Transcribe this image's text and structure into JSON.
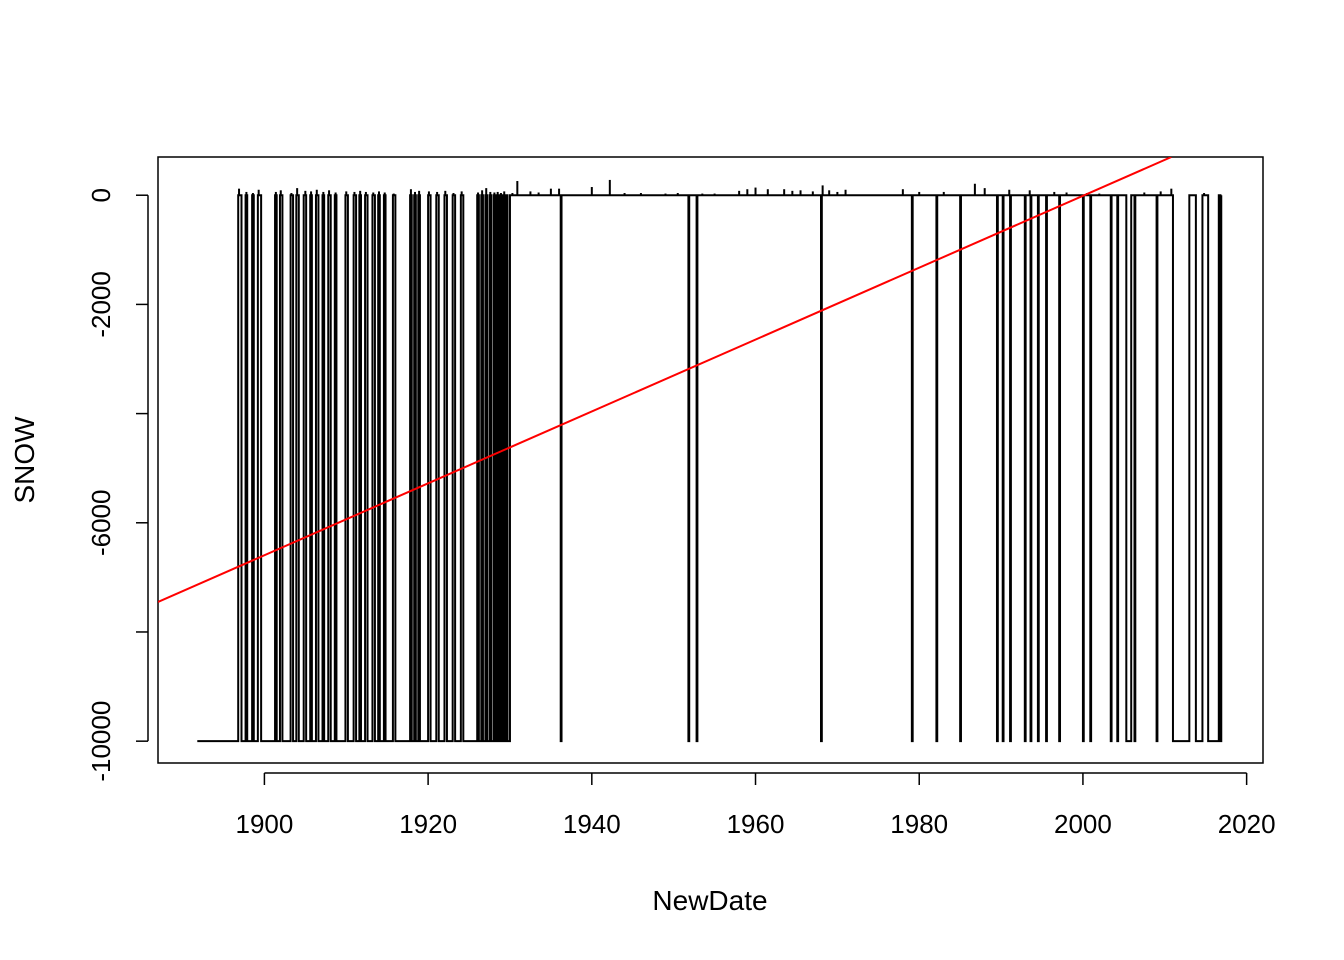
{
  "chart_data": {
    "type": "line",
    "title": "",
    "xlabel": "NewDate",
    "ylabel": "SNOW",
    "xlim": [
      1887,
      2022
    ],
    "ylim": [
      -10400,
      700
    ],
    "x_ticks": [
      1900,
      1920,
      1940,
      1960,
      1980,
      2000,
      2020
    ],
    "x_tick_labels": [
      "1900",
      "1920",
      "1940",
      "1960",
      "1980",
      "2000",
      "2020"
    ],
    "y_ticks": [
      0,
      -2000,
      -4000,
      -6000,
      -8000,
      -10000
    ],
    "y_tick_labels": [
      "0",
      "-2000",
      "",
      "-6000",
      "",
      "-10000"
    ],
    "grid": false,
    "series": [
      {
        "type": "line",
        "color": "#000000",
        "baseline": 0,
        "missing_value": -9999,
        "data_start": 1891.8,
        "data_end": 2016.9,
        "missing_runs": [
          [
            1891.8,
            1896.8
          ],
          [
            1897.2,
            1897.7
          ],
          [
            1897.9,
            1898.5
          ],
          [
            1898.7,
            1899.2
          ],
          [
            1899.6,
            1901.3
          ],
          [
            1901.5,
            1901.9
          ],
          [
            1902.2,
            1903.2
          ],
          [
            1903.5,
            1903.9
          ],
          [
            1904.2,
            1904.8
          ],
          [
            1905.1,
            1905.6
          ],
          [
            1905.8,
            1906.3
          ],
          [
            1906.6,
            1907.1
          ],
          [
            1907.3,
            1907.8
          ],
          [
            1908.1,
            1908.6
          ],
          [
            1908.8,
            1909.9
          ],
          [
            1910.2,
            1910.9
          ],
          [
            1911.2,
            1911.6
          ],
          [
            1911.8,
            1912.3
          ],
          [
            1912.6,
            1913.2
          ],
          [
            1913.5,
            1913.9
          ],
          [
            1914.1,
            1914.6
          ],
          [
            1914.8,
            1915.7
          ],
          [
            1916.0,
            1917.8
          ],
          [
            1918.0,
            1918.3
          ],
          [
            1918.5,
            1918.8
          ],
          [
            1919.0,
            1920.0
          ],
          [
            1920.3,
            1921.0
          ],
          [
            1921.3,
            1922.0
          ],
          [
            1922.3,
            1923.0
          ],
          [
            1923.3,
            1924.0
          ],
          [
            1924.3,
            1926.0
          ],
          [
            1926.2,
            1926.5
          ],
          [
            1926.7,
            1927.0
          ],
          [
            1927.2,
            1927.5
          ],
          [
            1927.7,
            1928.0
          ],
          [
            1928.2,
            1928.4
          ],
          [
            1928.6,
            1928.8
          ],
          [
            1929.0,
            1929.2
          ],
          [
            1929.4,
            1929.6
          ],
          [
            1929.7,
            1930.0
          ],
          [
            1936.2,
            1936.3
          ],
          [
            1951.8,
            1951.9
          ],
          [
            1952.8,
            1952.9
          ],
          [
            1968.0,
            1968.1
          ],
          [
            1979.1,
            1979.2
          ],
          [
            1982.1,
            1982.2
          ],
          [
            1985.0,
            1985.1
          ],
          [
            1989.5,
            1989.6
          ],
          [
            1990.2,
            1990.3
          ],
          [
            1991.1,
            1991.2
          ],
          [
            1992.9,
            1993.0
          ],
          [
            1993.6,
            1993.7
          ],
          [
            1994.5,
            1994.6
          ],
          [
            1995.5,
            1995.6
          ],
          [
            1997.1,
            1997.2
          ],
          [
            2000.0,
            2000.1
          ],
          [
            2000.9,
            2001.0
          ],
          [
            2003.4,
            2003.5
          ],
          [
            2004.2,
            2004.3
          ],
          [
            2005.3,
            2005.9
          ],
          [
            2006.3,
            2006.4
          ],
          [
            2009.0,
            2009.1
          ],
          [
            2011.0,
            2013.0
          ],
          [
            2013.8,
            2014.6
          ],
          [
            2015.3,
            2016.6
          ],
          [
            2016.8,
            2016.9
          ]
        ],
        "spikes": [
          [
            1896.9,
            120
          ],
          [
            1897.8,
            60
          ],
          [
            1898.6,
            40
          ],
          [
            1899.3,
            100
          ],
          [
            1901.4,
            60
          ],
          [
            1902.0,
            90
          ],
          [
            1903.3,
            40
          ],
          [
            1904.0,
            130
          ],
          [
            1905.0,
            80
          ],
          [
            1905.7,
            70
          ],
          [
            1906.4,
            100
          ],
          [
            1907.2,
            60
          ],
          [
            1907.9,
            90
          ],
          [
            1908.7,
            50
          ],
          [
            1910.0,
            70
          ],
          [
            1911.0,
            60
          ],
          [
            1911.7,
            80
          ],
          [
            1912.4,
            60
          ],
          [
            1913.3,
            50
          ],
          [
            1914.0,
            70
          ],
          [
            1914.7,
            50
          ],
          [
            1915.8,
            30
          ],
          [
            1917.9,
            110
          ],
          [
            1918.4,
            60
          ],
          [
            1918.9,
            80
          ],
          [
            1920.1,
            70
          ],
          [
            1921.1,
            60
          ],
          [
            1922.1,
            80
          ],
          [
            1923.1,
            40
          ],
          [
            1924.1,
            70
          ],
          [
            1926.1,
            50
          ],
          [
            1926.6,
            90
          ],
          [
            1927.1,
            130
          ],
          [
            1927.6,
            60
          ],
          [
            1928.1,
            50
          ],
          [
            1928.5,
            60
          ],
          [
            1928.9,
            40
          ],
          [
            1929.3,
            70
          ],
          [
            1930.3,
            40
          ],
          [
            1930.9,
            260
          ],
          [
            1932.5,
            70
          ],
          [
            1933.5,
            50
          ],
          [
            1935.0,
            120
          ],
          [
            1936.0,
            120
          ],
          [
            1940.0,
            150
          ],
          [
            1942.2,
            280
          ],
          [
            1944.0,
            40
          ],
          [
            1946.0,
            40
          ],
          [
            1949.0,
            30
          ],
          [
            1950.5,
            40
          ],
          [
            1953.5,
            30
          ],
          [
            1955.0,
            30
          ],
          [
            1958.0,
            80
          ],
          [
            1959.0,
            110
          ],
          [
            1960.0,
            140
          ],
          [
            1961.5,
            110
          ],
          [
            1963.5,
            110
          ],
          [
            1964.5,
            80
          ],
          [
            1965.5,
            90
          ],
          [
            1967.0,
            70
          ],
          [
            1968.2,
            180
          ],
          [
            1969.0,
            90
          ],
          [
            1970.0,
            60
          ],
          [
            1971.0,
            100
          ],
          [
            1978.0,
            110
          ],
          [
            1980.0,
            60
          ],
          [
            1983.0,
            60
          ],
          [
            1986.8,
            210
          ],
          [
            1988.0,
            130
          ],
          [
            1991.0,
            100
          ],
          [
            1993.5,
            90
          ],
          [
            1996.5,
            60
          ],
          [
            1998.0,
            50
          ],
          [
            2000.5,
            40
          ],
          [
            2002.0,
            30
          ],
          [
            2007.5,
            50
          ],
          [
            2009.5,
            70
          ],
          [
            2010.8,
            120
          ],
          [
            2014.8,
            40
          ]
        ]
      },
      {
        "type": "line",
        "color": "#ff0000",
        "points": [
          [
            1887,
            -7450
          ],
          [
            2010.8,
            700
          ]
        ]
      }
    ]
  }
}
